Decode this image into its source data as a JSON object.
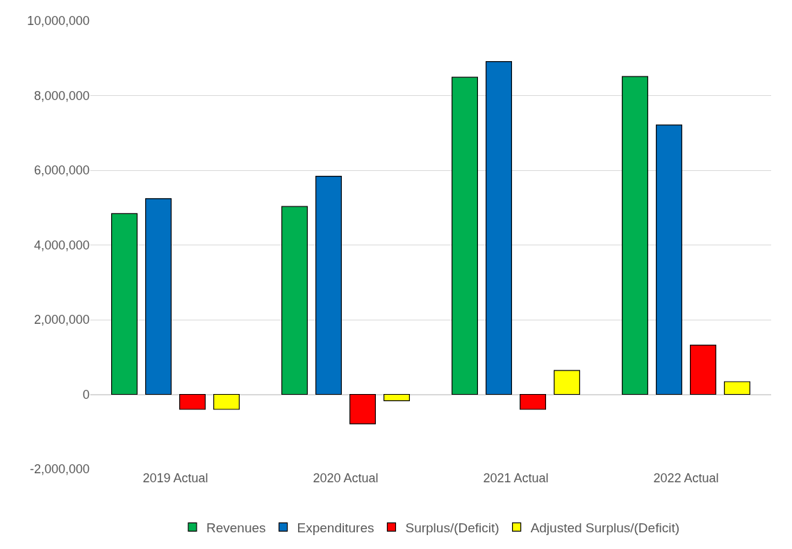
{
  "chart_data": {
    "type": "bar",
    "categories": [
      "2019 Actual",
      "2020 Actual",
      "2021 Actual",
      "2022 Actual"
    ],
    "series": [
      {
        "name": "Revenues",
        "color": "#00b050",
        "values": [
          4840000,
          5030000,
          8490000,
          8510000
        ]
      },
      {
        "name": "Expenditures",
        "color": "#0070c0",
        "values": [
          5240000,
          5840000,
          8910000,
          7210000
        ]
      },
      {
        "name": "Surplus/(Deficit)",
        "color": "#ff0000",
        "values": [
          -400000,
          -790000,
          -400000,
          1320000
        ]
      },
      {
        "name": "Adjusted Surplus/(Deficit)",
        "color": "#ffff00",
        "values": [
          -400000,
          -170000,
          640000,
          340000
        ]
      }
    ],
    "ylim": [
      -2000000,
      10000000
    ],
    "yticks": [
      {
        "value": -2000000,
        "label": "-2,000,000"
      },
      {
        "value": 0,
        "label": "0"
      },
      {
        "value": 2000000,
        "label": "2,000,000"
      },
      {
        "value": 4000000,
        "label": "4,000,000"
      },
      {
        "value": 6000000,
        "label": "6,000,000"
      },
      {
        "value": 8000000,
        "label": "8,000,000"
      },
      {
        "value": 10000000,
        "label": "10,000,000"
      }
    ],
    "grid": "y",
    "legend": "bottom"
  }
}
